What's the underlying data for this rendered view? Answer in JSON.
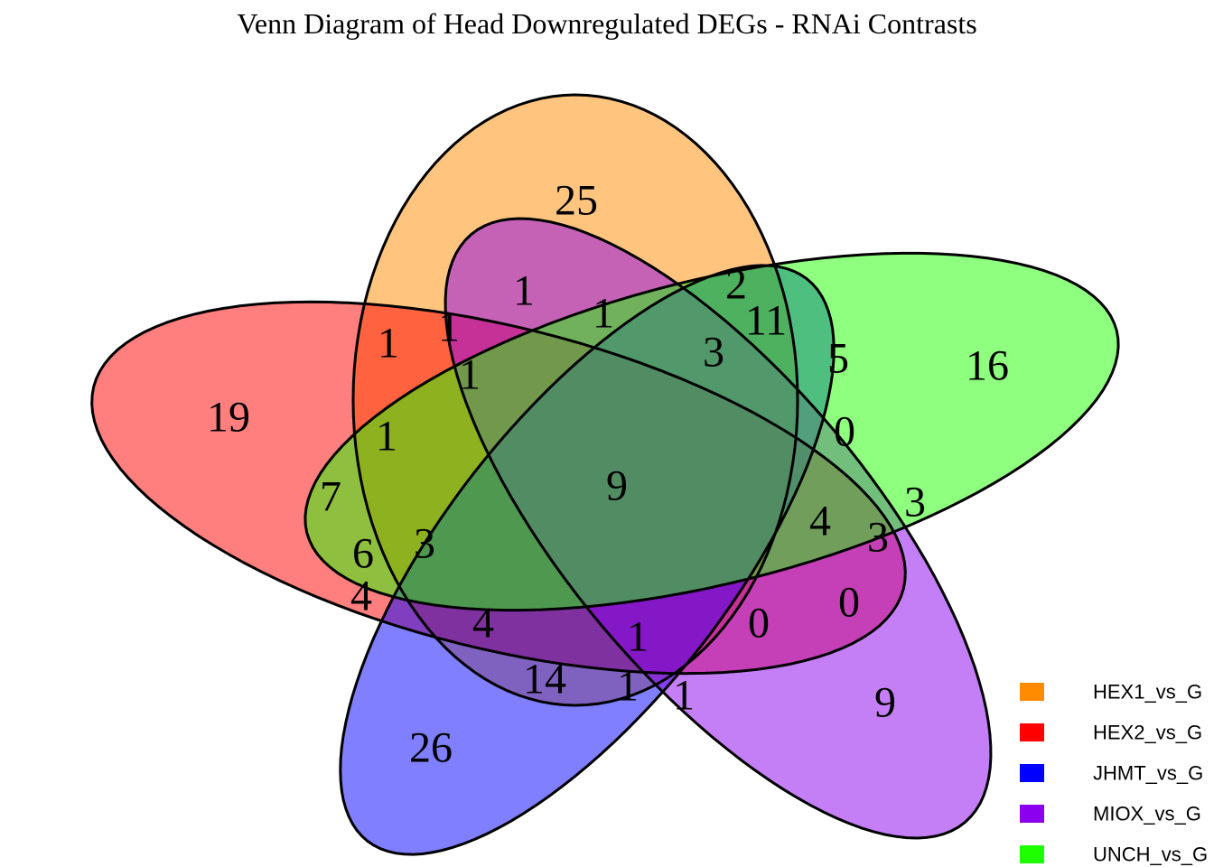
{
  "title": "Venn Diagram of Head Downregulated DEGs - RNAi Contrasts",
  "sets": [
    {
      "name": "HEX1_vs_G",
      "color": "#FF8C00"
    },
    {
      "name": "HEX2_vs_G",
      "color": "#FF0000"
    },
    {
      "name": "JHMT_vs_G",
      "color": "#0000FF"
    },
    {
      "name": "MIOX_vs_G",
      "color": "#8B00EE"
    },
    {
      "name": "UNCH_vs_G",
      "color": "#1EFF00"
    }
  ],
  "region_counts": [
    25,
    19,
    16,
    26,
    9,
    1,
    2,
    1,
    1,
    1,
    11,
    3,
    5,
    1,
    0,
    1,
    9,
    7,
    3,
    4,
    3,
    6,
    3,
    4,
    0,
    4,
    0,
    1,
    14,
    1,
    1
  ]
}
